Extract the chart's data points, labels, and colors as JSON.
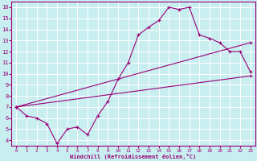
{
  "xlabel": "Windchill (Refroidissement éolien,°C)",
  "bg_color": "#c8eef0",
  "line_color": "#990077",
  "grid_color": "#ffffff",
  "xlim": [
    -0.5,
    23.5
  ],
  "ylim": [
    3.5,
    16.5
  ],
  "xticks": [
    0,
    1,
    2,
    3,
    4,
    5,
    6,
    7,
    8,
    9,
    10,
    11,
    12,
    13,
    14,
    15,
    16,
    17,
    18,
    19,
    20,
    21,
    22,
    23
  ],
  "yticks": [
    4,
    5,
    6,
    7,
    8,
    9,
    10,
    11,
    12,
    13,
    14,
    15,
    16
  ],
  "line1_x": [
    0,
    1,
    2,
    3,
    4,
    5,
    6,
    7,
    8,
    9,
    10,
    11,
    12,
    13,
    14,
    15,
    16,
    17,
    18,
    19,
    20,
    21,
    22,
    23
  ],
  "line1_y": [
    7.0,
    6.2,
    6.0,
    5.5,
    3.7,
    5.0,
    5.2,
    4.5,
    6.2,
    7.5,
    9.5,
    11.0,
    13.5,
    14.2,
    14.8,
    16.0,
    15.8,
    16.0,
    13.5,
    13.2,
    12.8,
    12.0,
    12.0,
    10.2
  ],
  "line2_x": [
    0,
    23
  ],
  "line2_y": [
    7.0,
    9.8
  ],
  "line3_x": [
    0,
    23
  ],
  "line3_y": [
    7.0,
    12.8
  ]
}
